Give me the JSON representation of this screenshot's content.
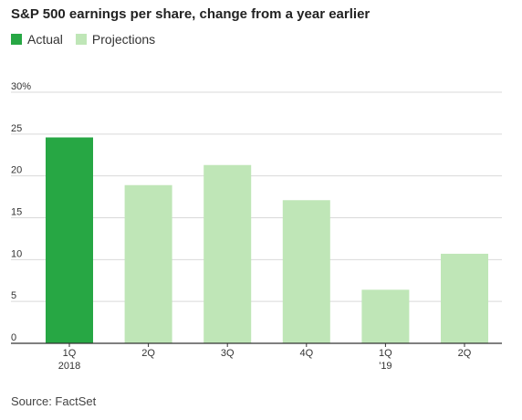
{
  "chart_data": {
    "type": "bar",
    "title": "S&P 500 earnings per share, change from a year earlier",
    "legend": [
      {
        "name": "Actual",
        "color": "#27a744"
      },
      {
        "name": "Projections",
        "color": "#bfe6b7"
      }
    ],
    "categories": [
      [
        "1Q",
        "2018"
      ],
      [
        "2Q",
        ""
      ],
      [
        "3Q",
        ""
      ],
      [
        "4Q",
        ""
      ],
      [
        "1Q",
        "'19"
      ],
      [
        "2Q",
        ""
      ]
    ],
    "values": [
      24.6,
      18.9,
      21.3,
      17.1,
      6.4,
      10.7
    ],
    "kinds": [
      "Actual",
      "Projections",
      "Projections",
      "Projections",
      "Projections",
      "Projections"
    ],
    "ylim": [
      0,
      30
    ],
    "yticks": [
      "0",
      "5",
      "10",
      "15",
      "20",
      "25",
      "30%"
    ],
    "ytick_values": [
      0,
      5,
      10,
      15,
      20,
      25,
      30
    ],
    "grid": true,
    "legend_position": "top-left",
    "xlabel": "",
    "ylabel": ""
  },
  "source": "Source: FactSet",
  "colors": {
    "actual": "#27a744",
    "projection": "#bfe6b7",
    "grid": "#d9d9d9",
    "axis": "#333333"
  }
}
